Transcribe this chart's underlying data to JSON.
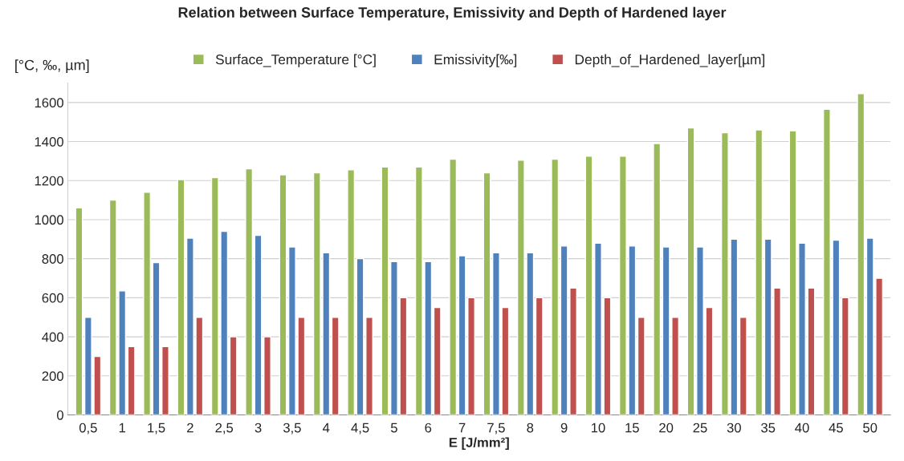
{
  "chart_data": {
    "type": "bar",
    "title": "Relation between Surface Temperature, Emissivity and Depth of Hardened layer",
    "xlabel": "E [J/mm²]",
    "ylabel": "[°C, ‰, µm]",
    "categories": [
      "0,5",
      "1",
      "1,5",
      "2",
      "2,5",
      "3",
      "3,5",
      "4",
      "4,5",
      "5",
      "6",
      "7",
      "7,5",
      "8",
      "9",
      "10",
      "15",
      "20",
      "25",
      "30",
      "35",
      "40",
      "45",
      "50"
    ],
    "series": [
      {
        "name": "Surface_Temperature [°C]",
        "color": "#9bbb59",
        "values": [
          1060,
          1100,
          1140,
          1205,
          1215,
          1260,
          1230,
          1240,
          1255,
          1270,
          1270,
          1310,
          1240,
          1305,
          1310,
          1325,
          1325,
          1390,
          1470,
          1445,
          1460,
          1455,
          1565,
          1645
        ]
      },
      {
        "name": "Emissivity[‰]",
        "color": "#4f81bd",
        "values": [
          500,
          635,
          780,
          905,
          940,
          920,
          860,
          830,
          800,
          785,
          785,
          815,
          830,
          830,
          865,
          880,
          865,
          860,
          860,
          900,
          900,
          880,
          895,
          905
        ]
      },
      {
        "name": "Depth_of_Hardened_layer[µm]",
        "color": "#c0504d",
        "values": [
          300,
          350,
          350,
          500,
          400,
          400,
          500,
          500,
          500,
          600,
          550,
          600,
          550,
          600,
          650,
          600,
          500,
          500,
          550,
          500,
          650,
          650,
          600,
          700
        ]
      }
    ],
    "ylim": [
      0,
      1700
    ],
    "yticks": [
      0,
      200,
      400,
      600,
      800,
      1000,
      1200,
      1400,
      1600
    ],
    "grid": "y",
    "legend": "top"
  }
}
